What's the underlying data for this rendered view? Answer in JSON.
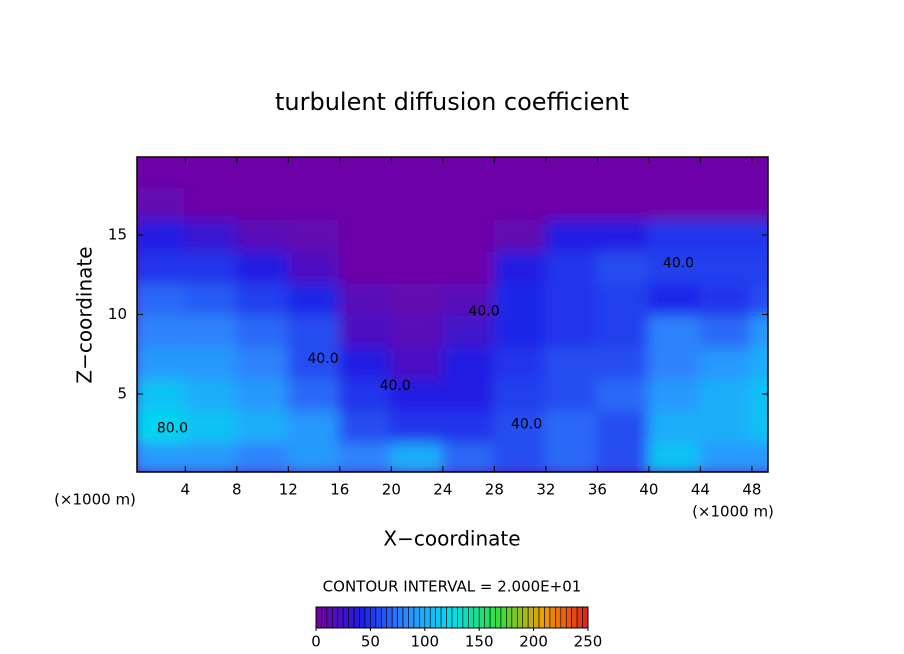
{
  "chart_data": {
    "type": "heatmap",
    "title": "turbulent diffusion coefficient",
    "xlabel": "X−coordinate",
    "ylabel": "Z−coordinate",
    "xunit_left": "(×1000 m)",
    "xunit_right": "(×1000 m)",
    "contour_note": "CONTOUR INTERVAL = 2.000E+01",
    "xlim": [
      0.25,
      49.25
    ],
    "ylim": [
      0.1,
      19.9
    ],
    "xticks": [
      4,
      8,
      12,
      16,
      20,
      24,
      28,
      32,
      36,
      40,
      44,
      48
    ],
    "yticks": [
      5,
      10,
      15
    ],
    "x": [
      2,
      6,
      10,
      14,
      18,
      22,
      26,
      30,
      34,
      38,
      42,
      46,
      50
    ],
    "y": [
      1,
      3,
      5,
      7,
      9,
      11,
      13,
      15,
      17,
      19
    ],
    "z": [
      [
        90,
        90,
        80,
        90,
        80,
        100,
        70,
        60,
        70,
        60,
        110,
        90,
        90
      ],
      [
        120,
        110,
        100,
        90,
        60,
        50,
        50,
        60,
        70,
        60,
        100,
        100,
        110
      ],
      [
        110,
        100,
        90,
        70,
        50,
        40,
        40,
        55,
        60,
        70,
        90,
        100,
        110
      ],
      [
        90,
        90,
        80,
        60,
        40,
        20,
        40,
        50,
        60,
        60,
        80,
        90,
        100
      ],
      [
        80,
        80,
        70,
        60,
        20,
        15,
        25,
        45,
        50,
        55,
        80,
        70,
        90
      ],
      [
        70,
        65,
        55,
        45,
        15,
        10,
        15,
        45,
        50,
        55,
        45,
        50,
        60
      ],
      [
        50,
        50,
        40,
        20,
        5,
        5,
        5,
        40,
        50,
        60,
        55,
        55,
        55
      ],
      [
        40,
        30,
        15,
        10,
        5,
        5,
        5,
        10,
        40,
        40,
        50,
        50,
        50
      ],
      [
        10,
        5,
        5,
        5,
        5,
        5,
        5,
        5,
        5,
        5,
        5,
        5,
        5
      ],
      [
        5,
        5,
        5,
        5,
        5,
        5,
        5,
        5,
        5,
        5,
        5,
        5,
        5
      ]
    ],
    "contour_labels": [
      {
        "text": "40.0",
        "x": 42.3,
        "y": 13.2
      },
      {
        "text": "40.0",
        "x": 27.2,
        "y": 10.2
      },
      {
        "text": "40.0",
        "x": 14.7,
        "y": 7.2
      },
      {
        "text": "40.0",
        "x": 20.3,
        "y": 5.5
      },
      {
        "text": "40.0",
        "x": 30.5,
        "y": 3.1
      },
      {
        "text": "80.0",
        "x": 3.0,
        "y": 2.85
      }
    ],
    "clim": [
      0,
      250
    ],
    "colorbar_ticks": [
      0,
      50,
      100,
      150,
      200,
      250
    ],
    "colormap": [
      "#7800a0",
      "#1e1ee6",
      "#2e8cff",
      "#00e0f0",
      "#30e040",
      "#f0a000",
      "#e02020"
    ]
  }
}
